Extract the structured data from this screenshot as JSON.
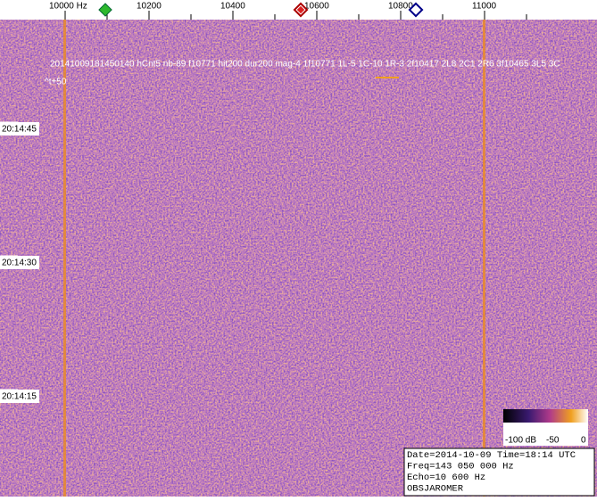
{
  "frequency_axis": {
    "labels": [
      "10000  Hz",
      "10200",
      "10400",
      "10600",
      "10800",
      "11000"
    ]
  },
  "overlay": {
    "detection": "20141009181450140 hCnt5 nb-89 f10771 hit200 dur200 mag-4 1f10771 1L-5 1C-10 1R-3 2f10417 2L8 2C1 2R6 3f10465 3L5 3C",
    "offset": "^t+50"
  },
  "time_labels": [
    "20:14:45",
    "20:14:30",
    "20:14:15"
  ],
  "colorbar": {
    "labels": [
      "-100 dB",
      "-50",
      "0"
    ]
  },
  "info": [
    "Date=2014-10-09 Time=18:14 UTC",
    "Freq=143 050 000 Hz",
    "Echo=10 600 Hz",
    "OBSJAROMER"
  ]
}
